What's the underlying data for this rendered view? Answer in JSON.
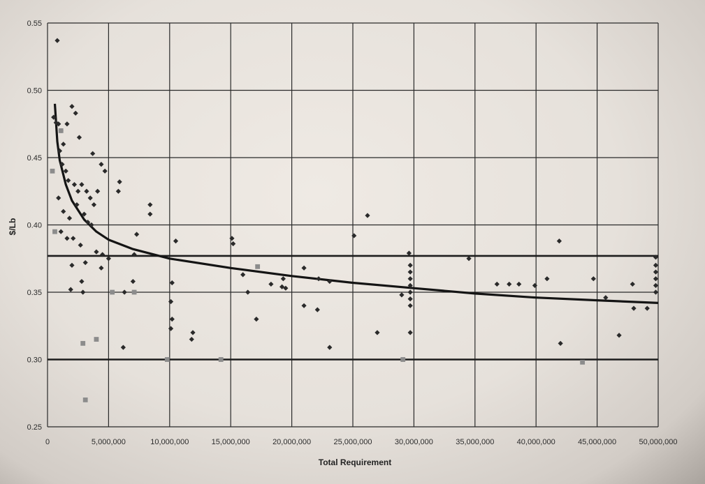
{
  "chart_data": {
    "type": "scatter",
    "xlabel": "Total Requirement",
    "ylabel": "$/Lb",
    "xlim": [
      0,
      50000000
    ],
    "ylim": [
      0.25,
      0.55
    ],
    "grid": true,
    "x_ticks": [
      0,
      5000000,
      10000000,
      15000000,
      20000000,
      25000000,
      30000000,
      35000000,
      40000000,
      45000000,
      50000000
    ],
    "x_tick_labels": [
      "0",
      "5,000,000",
      "10,000,000",
      "15,000,000",
      "20,000,000",
      "25,000,000",
      "30,000,000",
      "35,000,000",
      "40,000,000",
      "45,000,000",
      "50,000,000"
    ],
    "y_ticks": [
      0.25,
      0.3,
      0.35,
      0.4,
      0.45,
      0.5,
      0.55
    ],
    "y_tick_labels": [
      "0.25",
      "0.30",
      "0.35",
      "0.40",
      "0.45",
      "0.50",
      "0.55"
    ],
    "reference_lines": [
      0.3,
      0.377
    ],
    "colors": {
      "diamond": "#2a2a2a",
      "square": "#8c8c8c",
      "curve": "#141414",
      "grid": "#2a2a2a"
    },
    "series": [
      {
        "marker": "diamond",
        "points": [
          [
            800000,
            0.537
          ],
          [
            500000,
            0.48
          ],
          [
            700000,
            0.476
          ],
          [
            900000,
            0.475
          ],
          [
            1100000,
            0.47
          ],
          [
            1300000,
            0.46
          ],
          [
            1600000,
            0.475
          ],
          [
            2000000,
            0.488
          ],
          [
            2300000,
            0.483
          ],
          [
            2600000,
            0.465
          ],
          [
            1000000,
            0.455
          ],
          [
            1200000,
            0.445
          ],
          [
            1500000,
            0.44
          ],
          [
            1700000,
            0.433
          ],
          [
            2200000,
            0.43
          ],
          [
            2500000,
            0.425
          ],
          [
            2800000,
            0.43
          ],
          [
            3200000,
            0.425
          ],
          [
            3500000,
            0.42
          ],
          [
            3800000,
            0.415
          ],
          [
            4100000,
            0.425
          ],
          [
            4400000,
            0.445
          ],
          [
            4700000,
            0.44
          ],
          [
            3700000,
            0.453
          ],
          [
            900000,
            0.42
          ],
          [
            1300000,
            0.41
          ],
          [
            1800000,
            0.405
          ],
          [
            2400000,
            0.415
          ],
          [
            3000000,
            0.408
          ],
          [
            3300000,
            0.402
          ],
          [
            1100000,
            0.395
          ],
          [
            1600000,
            0.39
          ],
          [
            2100000,
            0.39
          ],
          [
            2700000,
            0.385
          ],
          [
            3600000,
            0.4
          ],
          [
            4000000,
            0.38
          ],
          [
            4500000,
            0.378
          ],
          [
            5000000,
            0.375
          ],
          [
            2000000,
            0.37
          ],
          [
            3100000,
            0.372
          ],
          [
            4400000,
            0.368
          ],
          [
            1900000,
            0.352
          ],
          [
            2800000,
            0.358
          ],
          [
            2900000,
            0.35
          ],
          [
            6300000,
            0.35
          ],
          [
            5900000,
            0.432
          ],
          [
            5800000,
            0.425
          ],
          [
            8400000,
            0.415
          ],
          [
            8400000,
            0.408
          ],
          [
            7300000,
            0.393
          ],
          [
            7100000,
            0.378
          ],
          [
            7000000,
            0.358
          ],
          [
            6200000,
            0.309
          ],
          [
            10500000,
            0.388
          ],
          [
            10200000,
            0.357
          ],
          [
            10100000,
            0.343
          ],
          [
            10200000,
            0.33
          ],
          [
            10100000,
            0.323
          ],
          [
            11900000,
            0.32
          ],
          [
            11800000,
            0.315
          ],
          [
            15100000,
            0.39
          ],
          [
            15200000,
            0.386
          ],
          [
            16000000,
            0.363
          ],
          [
            16400000,
            0.35
          ],
          [
            17100000,
            0.33
          ],
          [
            18300000,
            0.356
          ],
          [
            19300000,
            0.36
          ],
          [
            19200000,
            0.354
          ],
          [
            19500000,
            0.353
          ],
          [
            21000000,
            0.368
          ],
          [
            21000000,
            0.34
          ],
          [
            22100000,
            0.337
          ],
          [
            22200000,
            0.36
          ],
          [
            23100000,
            0.358
          ],
          [
            23100000,
            0.309
          ],
          [
            25100000,
            0.392
          ],
          [
            26200000,
            0.407
          ],
          [
            27000000,
            0.32
          ],
          [
            29000000,
            0.348
          ],
          [
            29600000,
            0.379
          ],
          [
            29700000,
            0.37
          ],
          [
            29700000,
            0.365
          ],
          [
            29700000,
            0.36
          ],
          [
            29700000,
            0.355
          ],
          [
            29700000,
            0.35
          ],
          [
            29700000,
            0.345
          ],
          [
            29700000,
            0.34
          ],
          [
            29700000,
            0.32
          ],
          [
            34500000,
            0.375
          ],
          [
            36800000,
            0.356
          ],
          [
            37800000,
            0.356
          ],
          [
            38600000,
            0.356
          ],
          [
            39900000,
            0.355
          ],
          [
            40900000,
            0.36
          ],
          [
            41900000,
            0.388
          ],
          [
            42000000,
            0.312
          ],
          [
            44700000,
            0.36
          ],
          [
            45700000,
            0.346
          ],
          [
            46800000,
            0.318
          ],
          [
            47900000,
            0.356
          ],
          [
            48000000,
            0.338
          ],
          [
            49100000,
            0.338
          ],
          [
            49800000,
            0.376
          ],
          [
            49800000,
            0.37
          ],
          [
            49800000,
            0.365
          ],
          [
            49800000,
            0.36
          ],
          [
            49800000,
            0.355
          ],
          [
            49800000,
            0.35
          ]
        ]
      },
      {
        "marker": "square",
        "points": [
          [
            400000,
            0.44
          ],
          [
            600000,
            0.395
          ],
          [
            1100000,
            0.47
          ],
          [
            2900000,
            0.312
          ],
          [
            3100000,
            0.27
          ],
          [
            4000000,
            0.315
          ],
          [
            5300000,
            0.35
          ],
          [
            7100000,
            0.35
          ],
          [
            9800000,
            0.3
          ],
          [
            14200000,
            0.3
          ],
          [
            17200000,
            0.369
          ],
          [
            29100000,
            0.3
          ],
          [
            43800000,
            0.298
          ]
        ]
      },
      {
        "marker": "curve",
        "points": [
          [
            600000,
            0.49
          ],
          [
            800000,
            0.462
          ],
          [
            1000000,
            0.448
          ],
          [
            1500000,
            0.43
          ],
          [
            2000000,
            0.418
          ],
          [
            3000000,
            0.404
          ],
          [
            4000000,
            0.395
          ],
          [
            5000000,
            0.389
          ],
          [
            7000000,
            0.382
          ],
          [
            10000000,
            0.375
          ],
          [
            15000000,
            0.368
          ],
          [
            20000000,
            0.362
          ],
          [
            25000000,
            0.357
          ],
          [
            30000000,
            0.353
          ],
          [
            35000000,
            0.349
          ],
          [
            40000000,
            0.346
          ],
          [
            45000000,
            0.344
          ],
          [
            50000000,
            0.342
          ]
        ]
      }
    ]
  }
}
